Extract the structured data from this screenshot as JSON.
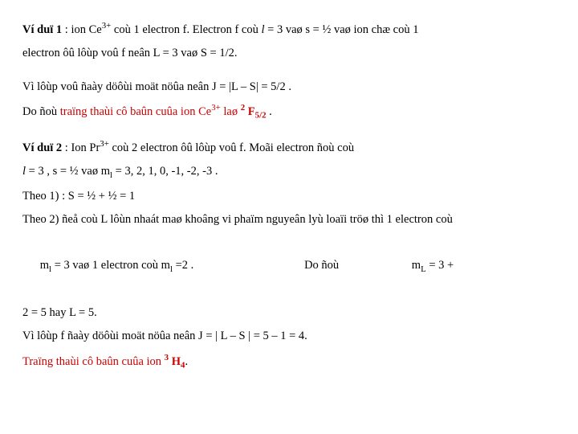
{
  "colors": {
    "text": "#000000",
    "accent": "#cc0000",
    "background": "#ffffff"
  },
  "typography": {
    "body_fontsize": 14.5,
    "sup_scale": 0.75,
    "sub_scale": 0.75,
    "line_height": 1.9
  },
  "example1": {
    "label": "Ví duï 1",
    "text_a": " : ion Ce",
    "ion_sup": "3+",
    "text_b": " coù 1 electron f.  Electron f coù ",
    "l_symbol": "l",
    "text_c": " = 3 vaø s = ½ vaø ion chæ coù 1",
    "line2": "electron ôû lôùp voû f neân L = 3 vaø S = 1/2.",
    "line3": "Vì lôùp voû ñaày döôùi moät nöûa neân J = |L – S| = 5/2 .",
    "line4_a": "Do ñoù ",
    "line4_red": "traïng thaùi cô baûn cuûa ion Ce",
    "line4_red_sup": "3+",
    "line4_red_b": " laø   ",
    "term_sup": "2",
    "term_letter": " F",
    "term_sub": "5/2",
    "line4_c": " ."
  },
  "example2": {
    "label": "Ví duï 2",
    "text_a": " : Ion Pr",
    "ion_sup": "3+",
    "text_b": " coù 2 electron ôû lôùp voû f. Moãi electron ñoù coù",
    "line2_a": "l",
    "line2_b": " = 3 , s = ½  vaø m",
    "line2_sub1": "l",
    "line2_c": "  = 3,  2,  1,  0,  -1,  -2,  -3  .",
    "line3": "Theo 1)  :  S  =  ½  +  ½  =  1",
    "line4": "Theo 2) ñeå coù L lôùn nhaát maø khoâng vi phaïm nguyeân lyù loaïi tröø thì 1 electron coù",
    "line5_a": "m",
    "line5_sub1": "l",
    "line5_b": " = 3 vaø 1 electron coù m",
    "line5_sub2": "l",
    "line5_c": " =2 .",
    "line5_gap1": "                                      ",
    "line5_d": "Do ñoù",
    "line5_gap2": "                         ",
    "line5_e": "m",
    "line5_sub3": "L",
    "line5_f": " = 3 +",
    "line6": "2 = 5       hay      L = 5.",
    "line7": "Vì lôùp f ñaày döôùi moät nöûa neân  J  =  | L – S |  =  5 – 1  =  4.",
    "line8_red": "Traïng thaùi cô baûn cuûa ion   ",
    "term_sup": "3",
    "term_letter": " H",
    "term_sub": "4",
    "line8_b": "."
  }
}
